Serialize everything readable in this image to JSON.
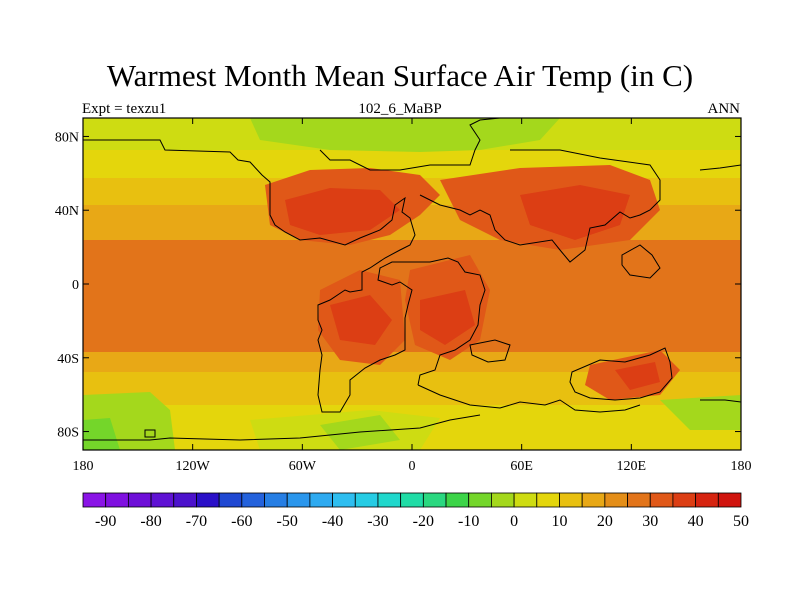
{
  "header": {
    "title": "Warmest Month Mean Surface Air Temp (in C)",
    "left_label": "Expt = texzu1",
    "center_label": "102_6_MaBP",
    "right_label": "ANN"
  },
  "axes": {
    "x_ticks": [
      "180",
      "120W",
      "60W",
      "0",
      "60E",
      "120E",
      "180"
    ],
    "y_ticks": [
      "80N",
      "40N",
      "0",
      "40S",
      "80S"
    ]
  },
  "colorbar": {
    "labels": [
      "-90",
      "-80",
      "-70",
      "-60",
      "-50",
      "-40",
      "-30",
      "-20",
      "-10",
      "0",
      "10",
      "20",
      "30",
      "40",
      "50"
    ],
    "colors": [
      "#8a14e6",
      "#7f10e0",
      "#6e0fd8",
      "#5f12d4",
      "#4c12cc",
      "#2a10c8",
      "#1f48d2",
      "#2462dc",
      "#267ee4",
      "#2a96ec",
      "#2eaaf0",
      "#2ebef0",
      "#26cce4",
      "#20d8cc",
      "#20dca6",
      "#2ad880",
      "#3cd448",
      "#74d62a",
      "#a4d81c",
      "#cedc12",
      "#e4d60c",
      "#e8c010",
      "#e8a816",
      "#e48e18",
      "#e2741a",
      "#e05818",
      "#dc3e14",
      "#d62410",
      "#d0140e"
    ]
  },
  "map_data": {
    "projection": "cylindrical-equidistant",
    "field": "warmest month mean surface air temperature",
    "lon_range": [
      -180,
      180
    ],
    "lat_range": [
      -90,
      90
    ]
  }
}
